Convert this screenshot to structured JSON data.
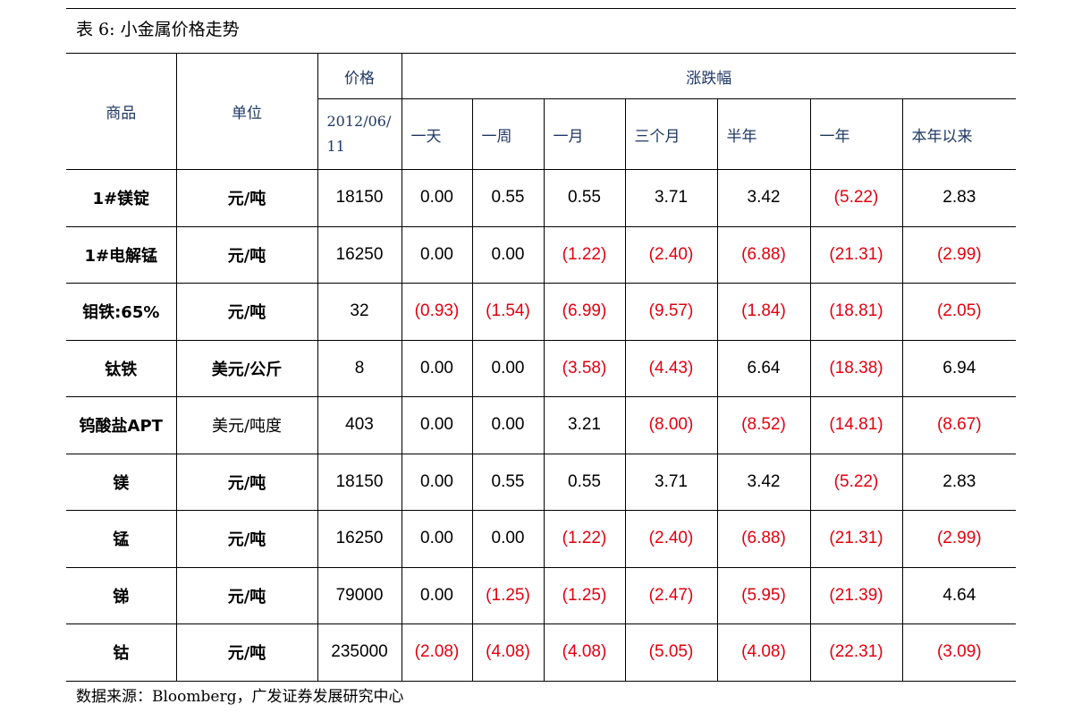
{
  "title": "表 6:  小金属价格走势",
  "header": {
    "item": "商品",
    "unit": "单位",
    "price": "价格",
    "change": "涨跌幅",
    "date": "2012/06/\n11",
    "periods": [
      "一天",
      "一周",
      "一月",
      "三个月",
      "半年",
      "一年",
      "本年以来"
    ]
  },
  "rows": [
    {
      "name": "1#镁锭",
      "unit": "元/吨",
      "unit_bold": true,
      "price": "18150",
      "changes": [
        "0.00",
        "0.55",
        "0.55",
        "3.71",
        "3.42",
        "(5.22)",
        "2.83"
      ]
    },
    {
      "name": "1#电解锰",
      "unit": "元/吨",
      "unit_bold": true,
      "price": "16250",
      "changes": [
        "0.00",
        "0.00",
        "(1.22)",
        "(2.40)",
        "(6.88)",
        "(21.31)",
        "(2.99)"
      ]
    },
    {
      "name": "钼铁:65%",
      "unit": "元/吨",
      "unit_bold": true,
      "price": "32",
      "changes": [
        "(0.93)",
        "(1.54)",
        "(6.99)",
        "(9.57)",
        "(1.84)",
        "(18.81)",
        "(2.05)"
      ]
    },
    {
      "name": "钛铁",
      "unit": "美元/公斤",
      "unit_bold": true,
      "price": "8",
      "changes": [
        "0.00",
        "0.00",
        "(3.58)",
        "(4.43)",
        "6.64",
        "(18.38)",
        "6.94"
      ]
    },
    {
      "name": "钨酸盐APT",
      "unit": "美元/吨度",
      "unit_bold": false,
      "price": "403",
      "changes": [
        "0.00",
        "0.00",
        "3.21",
        "(8.00)",
        "(8.52)",
        "(14.81)",
        "(8.67)"
      ]
    },
    {
      "name": "镁",
      "unit": "元/吨",
      "unit_bold": true,
      "price": "18150",
      "changes": [
        "0.00",
        "0.55",
        "0.55",
        "3.71",
        "3.42",
        "(5.22)",
        "2.83"
      ]
    },
    {
      "name": "锰",
      "unit": "元/吨",
      "unit_bold": true,
      "price": "16250",
      "changes": [
        "0.00",
        "0.00",
        "(1.22)",
        "(2.40)",
        "(6.88)",
        "(21.31)",
        "(2.99)"
      ]
    },
    {
      "name": "锑",
      "unit": "元/吨",
      "unit_bold": true,
      "price": "79000",
      "changes": [
        "0.00",
        "(1.25)",
        "(1.25)",
        "(2.47)",
        "(5.95)",
        "(21.39)",
        "4.64"
      ]
    },
    {
      "name": "钴",
      "unit": "元/吨",
      "unit_bold": true,
      "price": "235000",
      "changes": [
        "(2.08)",
        "(4.08)",
        "(4.08)",
        "(5.05)",
        "(4.08)",
        "(22.31)",
        "(3.09)"
      ]
    }
  ],
  "source": "数据来源：Bloomberg，广发证券发展研究中心",
  "colors": {
    "negative": "#e3000f",
    "header_text": "#1f3864"
  }
}
